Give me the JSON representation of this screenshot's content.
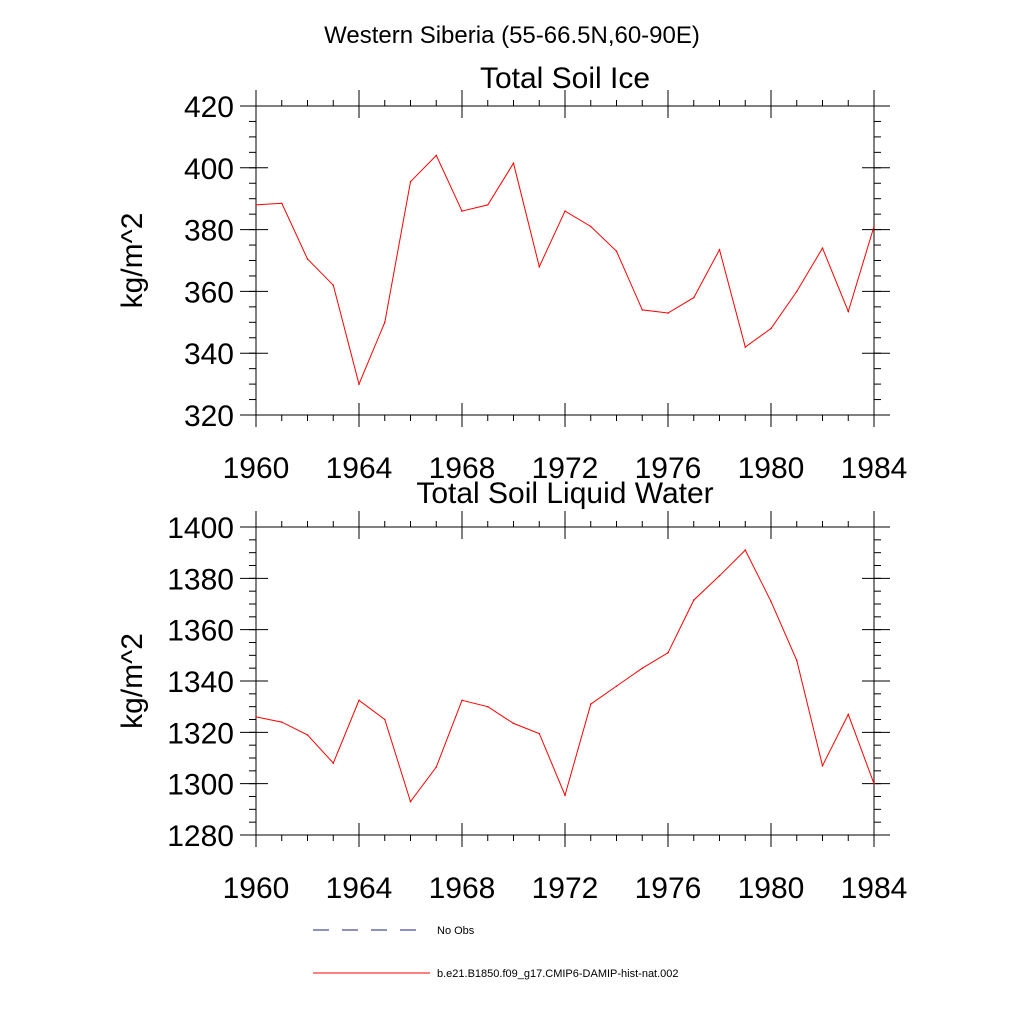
{
  "figure": {
    "title": "Western Siberia (55-66.5N,60-90E)"
  },
  "chart_data": [
    {
      "type": "line",
      "title": "Total Soil Ice",
      "xlabel": "",
      "ylabel": "kg/m^2",
      "xlim": [
        1960,
        1984
      ],
      "ylim": [
        320,
        420
      ],
      "x_ticks": [
        1960,
        1964,
        1968,
        1972,
        1976,
        1980,
        1984
      ],
      "y_ticks": [
        320,
        340,
        360,
        380,
        400,
        420
      ],
      "grid": false,
      "series": [
        {
          "name": "b.e21.B1850.f09_g17.CMIP6-DAMIP-hist-nat.002",
          "color": "#ff0000",
          "x": [
            1960,
            1961,
            1962,
            1963,
            1964,
            1965,
            1966,
            1967,
            1968,
            1969,
            1970,
            1971,
            1972,
            1973,
            1974,
            1975,
            1976,
            1977,
            1978,
            1979,
            1980,
            1981,
            1982,
            1983,
            1984
          ],
          "values": [
            388,
            388.5,
            370.5,
            362,
            330,
            350,
            395.5,
            404,
            386,
            388,
            401.5,
            368,
            386,
            381,
            373,
            354,
            353,
            358,
            373.5,
            342,
            348,
            360,
            374,
            353.5,
            381
          ]
        }
      ]
    },
    {
      "type": "line",
      "title": "Total Soil Liquid Water",
      "xlabel": "",
      "ylabel": "kg/m^2",
      "xlim": [
        1960,
        1984
      ],
      "ylim": [
        1280,
        1400
      ],
      "x_ticks": [
        1960,
        1964,
        1968,
        1972,
        1976,
        1980,
        1984
      ],
      "y_ticks": [
        1280,
        1300,
        1320,
        1340,
        1360,
        1380,
        1400
      ],
      "grid": false,
      "series": [
        {
          "name": "b.e21.B1850.f09_g17.CMIP6-DAMIP-hist-nat.002",
          "color": "#ff0000",
          "x": [
            1960,
            1961,
            1962,
            1963,
            1964,
            1965,
            1966,
            1967,
            1968,
            1969,
            1970,
            1971,
            1972,
            1973,
            1974,
            1975,
            1976,
            1977,
            1978,
            1979,
            1980,
            1981,
            1982,
            1983,
            1984
          ],
          "values": [
            1326,
            1324,
            1319,
            1308,
            1332.5,
            1325,
            1293,
            1306.5,
            1332.5,
            1330,
            1323.5,
            1319.5,
            1295.5,
            1331,
            1338,
            1345,
            1351,
            1371.5,
            1381,
            1391,
            1371,
            1348,
            1307,
            1327,
            1300
          ]
        }
      ]
    }
  ],
  "legend": {
    "placement": "bottom",
    "entries": [
      {
        "label": "No Obs",
        "color": "#1a237e",
        "style": "dashed"
      },
      {
        "label": "b.e21.B1850.f09_g17.CMIP6-DAMIP-hist-nat.002",
        "color": "#ff0000",
        "style": "solid"
      }
    ]
  }
}
